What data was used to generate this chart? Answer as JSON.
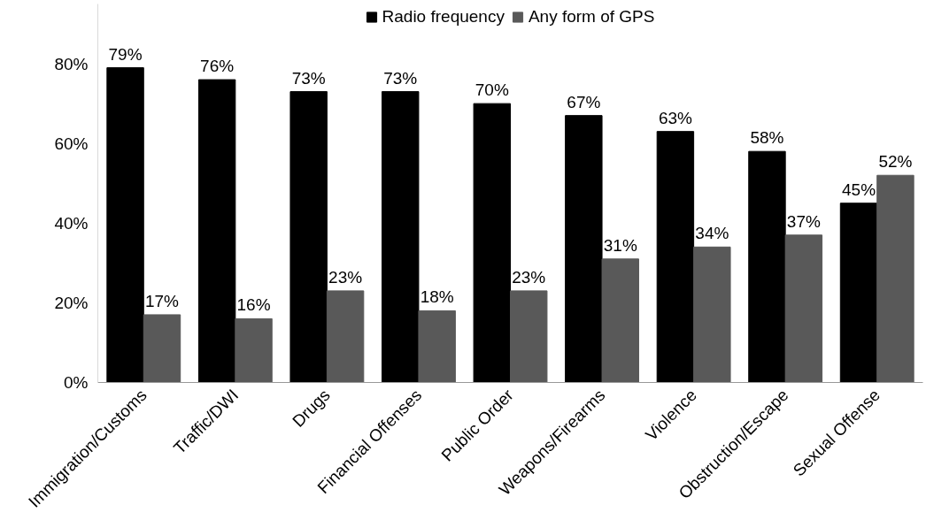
{
  "chart_data": {
    "type": "bar",
    "categories": [
      "Immigration/Customs",
      "Traffic/DWI",
      "Drugs",
      "Financial Offenses",
      "Public Order",
      "Weapons/Firearms",
      "Violence",
      "Obstruction/Escape",
      "Sexual Offense"
    ],
    "series": [
      {
        "name": "Radio frequency",
        "color": "#000000",
        "values": [
          79,
          76,
          73,
          73,
          70,
          67,
          63,
          58,
          45
        ],
        "value_labels": [
          "79%",
          "76%",
          "73%",
          "73%",
          "70%",
          "67%",
          "63%",
          "58%",
          "45%"
        ]
      },
      {
        "name": "Any form of GPS",
        "color": "#595959",
        "values": [
          17,
          16,
          23,
          18,
          23,
          31,
          34,
          37,
          52
        ],
        "value_labels": [
          "17%",
          "16%",
          "23%",
          "18%",
          "23%",
          "31%",
          "34%",
          "37%",
          "52%"
        ]
      }
    ],
    "ylim": [
      0,
      95
    ],
    "yticks": [
      {
        "value": 0,
        "label": "0%"
      },
      {
        "value": 20,
        "label": "20%"
      },
      {
        "value": 40,
        "label": "40%"
      },
      {
        "value": 60,
        "label": "60%"
      },
      {
        "value": 80,
        "label": "80%"
      }
    ],
    "grid": false,
    "legend": "top"
  }
}
